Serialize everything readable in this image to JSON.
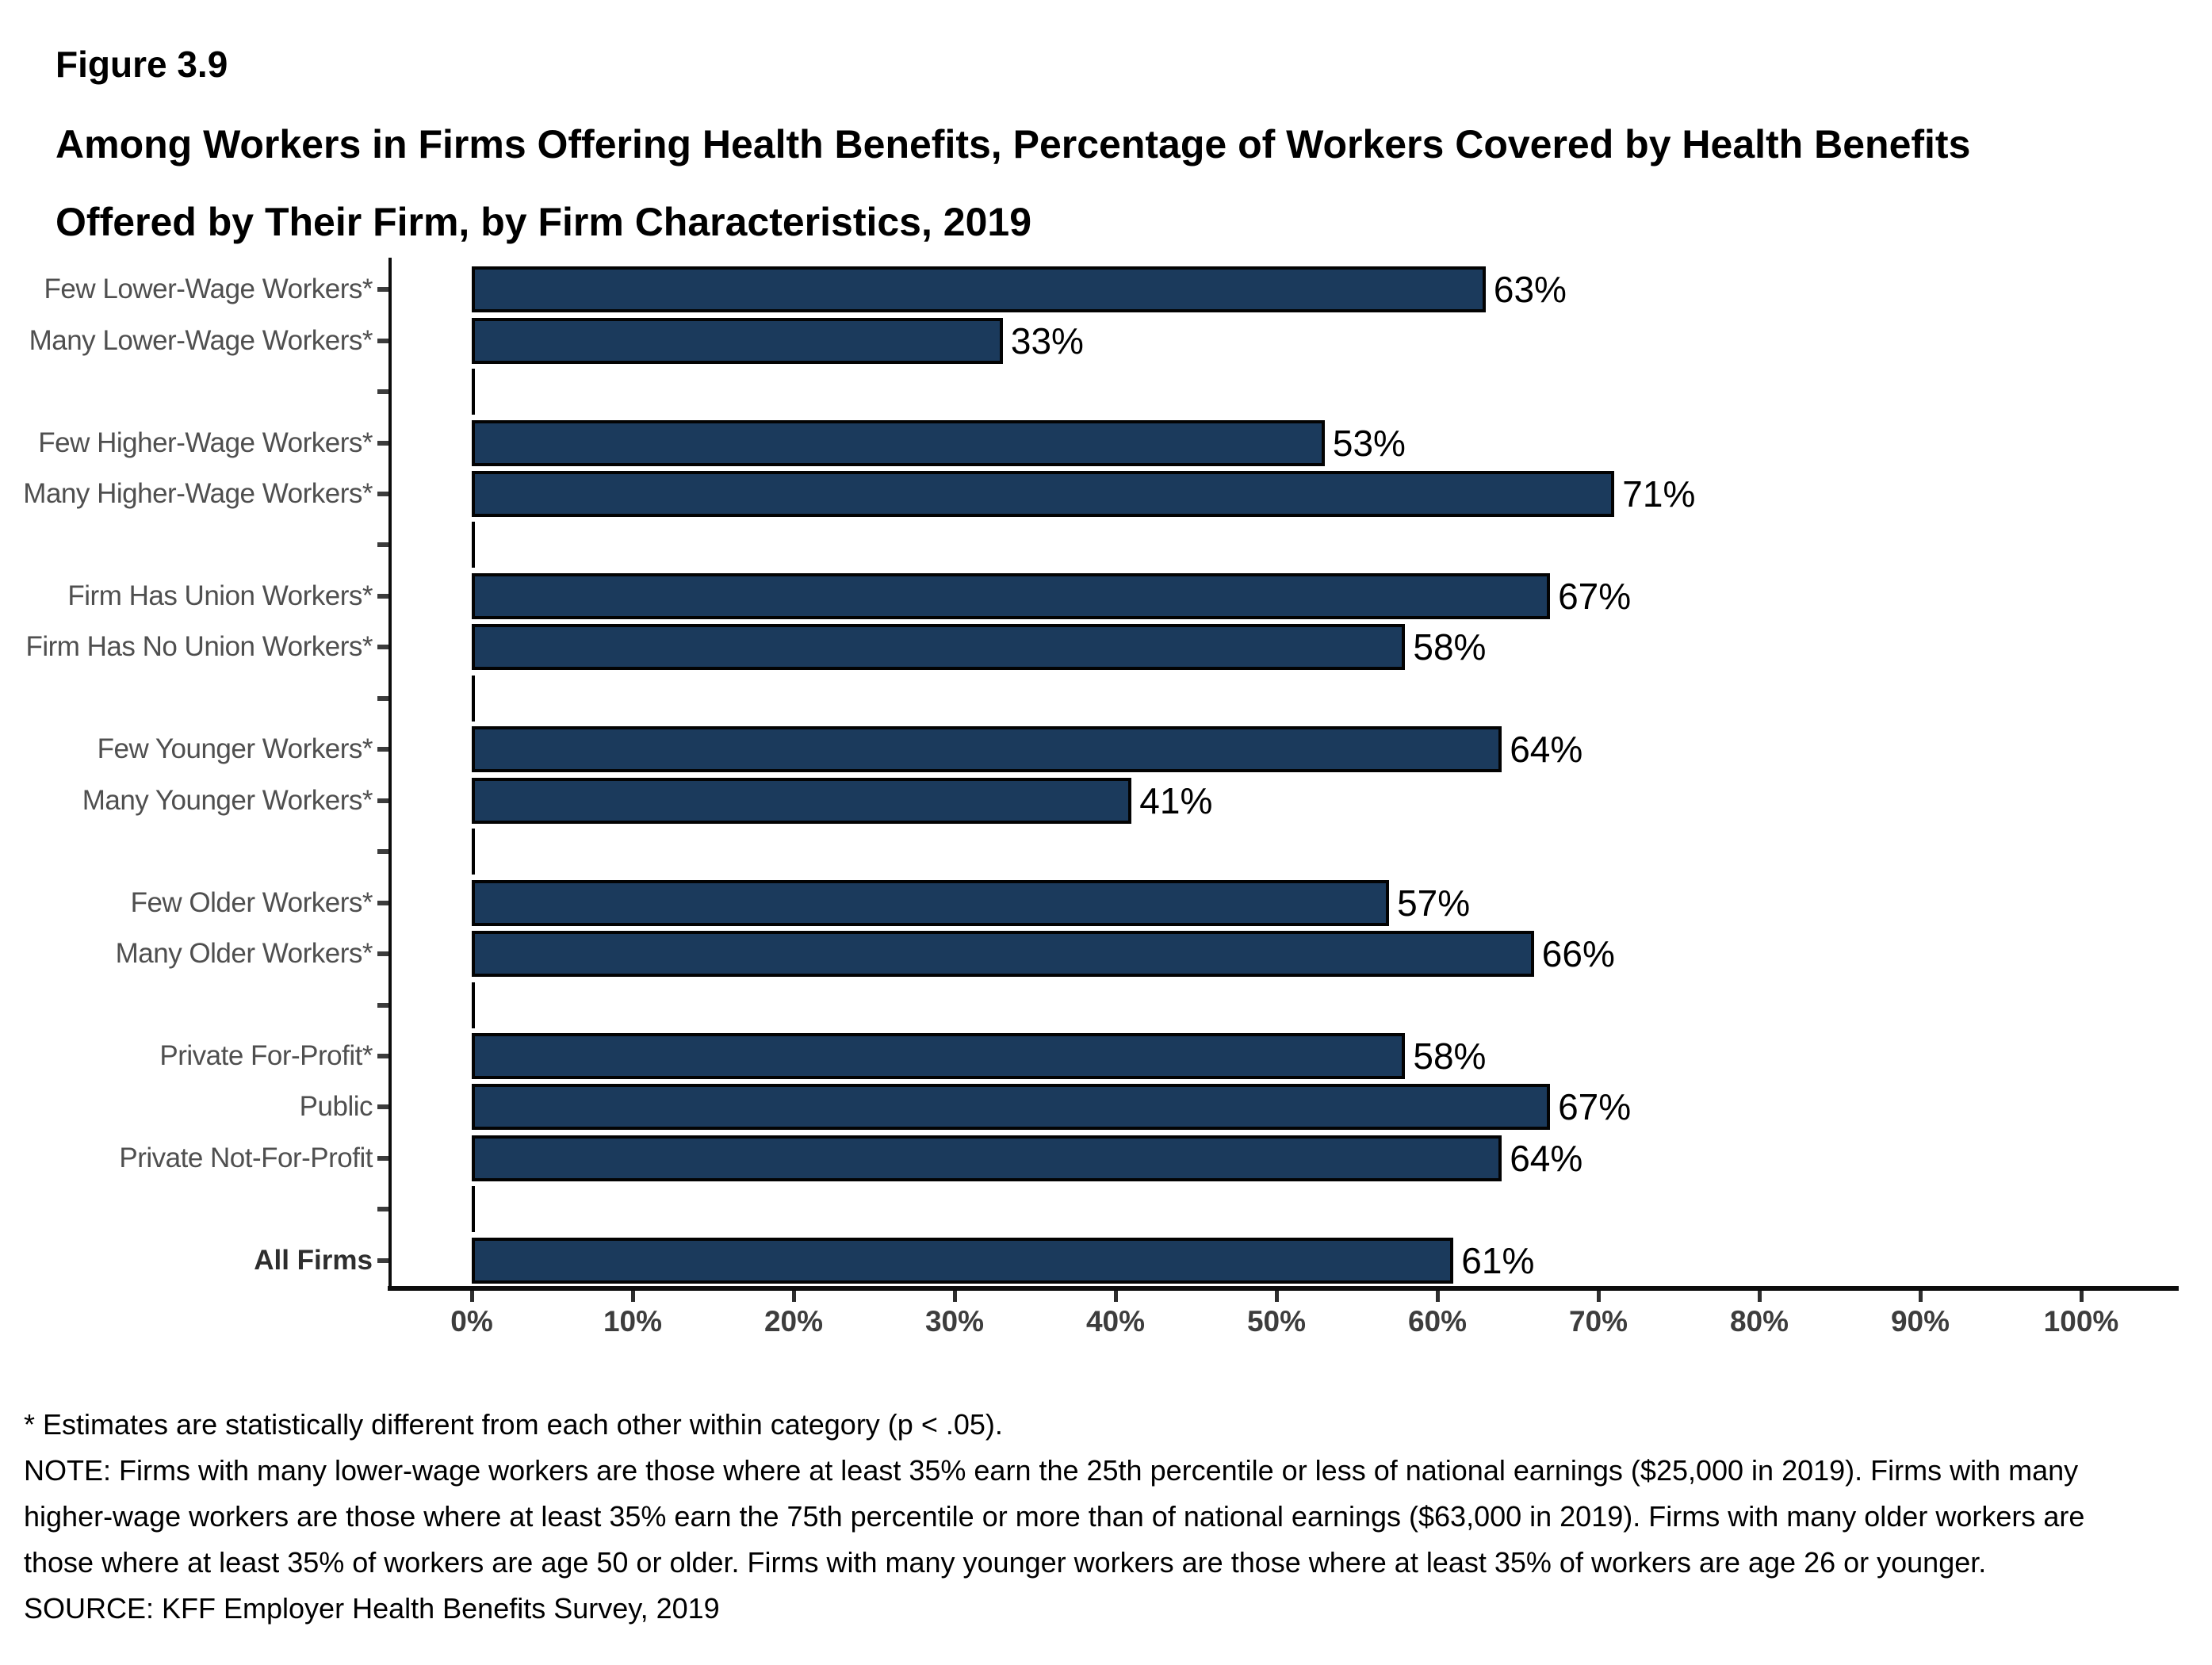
{
  "header": {
    "figure_label": "Figure 3.9",
    "title": "Among Workers in Firms Offering Health Benefits, Percentage of Workers Covered by Health Benefits Offered by Their Firm, by Firm Characteristics, 2019"
  },
  "chart_data": {
    "type": "bar",
    "orientation": "horizontal",
    "value_suffix": "%",
    "bar_color": "#1B3A5C",
    "bar_border_color": "#000000",
    "x_axis": {
      "min": 0,
      "max": 100,
      "tick_labels": [
        "0%",
        "10%",
        "20%",
        "30%",
        "40%",
        "50%",
        "60%",
        "70%",
        "80%",
        "90%",
        "100%"
      ]
    },
    "groups": [
      [
        {
          "label": "Few Lower-Wage Workers*",
          "value": 63
        },
        {
          "label": "Many Lower-Wage Workers*",
          "value": 33
        }
      ],
      [
        {
          "label": "Few Higher-Wage Workers*",
          "value": 53
        },
        {
          "label": "Many Higher-Wage Workers*",
          "value": 71
        }
      ],
      [
        {
          "label": "Firm Has Union Workers*",
          "value": 67
        },
        {
          "label": "Firm Has No Union Workers*",
          "value": 58
        }
      ],
      [
        {
          "label": "Few Younger Workers*",
          "value": 64
        },
        {
          "label": "Many Younger Workers*",
          "value": 41
        }
      ],
      [
        {
          "label": "Few Older Workers*",
          "value": 57
        },
        {
          "label": "Many Older Workers*",
          "value": 66
        }
      ],
      [
        {
          "label": "Private For-Profit*",
          "value": 58
        },
        {
          "label": "Public",
          "value": 67
        },
        {
          "label": "Private Not-For-Profit",
          "value": 64
        }
      ],
      [
        {
          "label": "All Firms",
          "value": 61,
          "bold": true
        }
      ]
    ]
  },
  "footnotes": {
    "asterisk_note": "* Estimates are statistically different from each other within category (p < .05).",
    "note": "NOTE: Firms with many lower-wage workers are those where at least 35% earn the 25th percentile or less of national earnings ($25,000 in 2019). Firms with many higher-wage workers are those where at least 35% earn the 75th percentile or more than of national earnings ($63,000 in 2019). Firms with many older workers are those where at least 35% of workers are age 50 or older. Firms with many younger workers are those where at least 35% of workers are age 26 or younger.",
    "source": "SOURCE: KFF Employer Health Benefits Survey, 2019"
  }
}
